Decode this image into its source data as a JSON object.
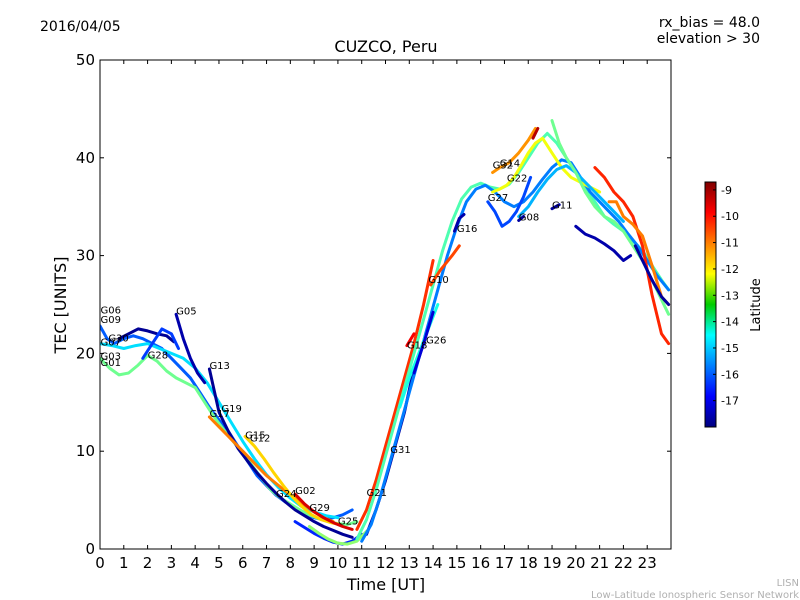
{
  "header": {
    "date": "2016/04/05",
    "bias": "rx_bias = 48.0",
    "elevation": "elevation > 30"
  },
  "footer": {
    "line1": "LISN",
    "line2": "Low-Latitude Ionospheric Sensor Network"
  },
  "chart_data": {
    "type": "line",
    "title": "CUZCO, Peru",
    "xlabel": "Time [UT]",
    "ylabel": "TEC [UNITS]",
    "xlim": [
      0,
      24
    ],
    "ylim": [
      0,
      50
    ],
    "xticks": [
      "0",
      "1",
      "2",
      "3",
      "4",
      "5",
      "6",
      "7",
      "8",
      "9",
      "10",
      "11",
      "12",
      "13",
      "14",
      "15",
      "16",
      "17",
      "18",
      "19",
      "20",
      "21",
      "22",
      "23"
    ],
    "yticks": [
      "0",
      "10",
      "20",
      "30",
      "40",
      "50"
    ],
    "grid": false,
    "colorbar": {
      "label": "Latitude",
      "range": [
        -18,
        -8.7
      ],
      "ticks": [
        "-9",
        "-10",
        "-11",
        "-12",
        "-13",
        "-14",
        "-15",
        "-16",
        "-17"
      ]
    },
    "satellite_labels": [
      {
        "name": "G06",
        "x": 0.02,
        "y": 24.1
      },
      {
        "name": "G09",
        "x": 0.02,
        "y": 23.1
      },
      {
        "name": "G30",
        "x": 0.35,
        "y": 21.2
      },
      {
        "name": "G07",
        "x": 0.02,
        "y": 20.8
      },
      {
        "name": "G03",
        "x": 0.02,
        "y": 19.4
      },
      {
        "name": "G01",
        "x": 0.02,
        "y": 18.7
      },
      {
        "name": "G28",
        "x": 2.0,
        "y": 19.5
      },
      {
        "name": "G05",
        "x": 3.2,
        "y": 24.0
      },
      {
        "name": "G13",
        "x": 4.6,
        "y": 18.4
      },
      {
        "name": "G19",
        "x": 5.1,
        "y": 14.0
      },
      {
        "name": "G17",
        "x": 4.6,
        "y": 13.5
      },
      {
        "name": "G15",
        "x": 6.1,
        "y": 11.3
      },
      {
        "name": "G12",
        "x": 6.3,
        "y": 11.0
      },
      {
        "name": "G24",
        "x": 7.4,
        "y": 5.3
      },
      {
        "name": "G02",
        "x": 8.2,
        "y": 5.6
      },
      {
        "name": "G29",
        "x": 8.8,
        "y": 3.9
      },
      {
        "name": "G25",
        "x": 10.0,
        "y": 2.5
      },
      {
        "name": "G21",
        "x": 11.2,
        "y": 5.4
      },
      {
        "name": "G31",
        "x": 12.2,
        "y": 9.8
      },
      {
        "name": "G18",
        "x": 12.9,
        "y": 20.5
      },
      {
        "name": "G26",
        "x": 13.7,
        "y": 21.0
      },
      {
        "name": "G10",
        "x": 13.8,
        "y": 27.2
      },
      {
        "name": "G16",
        "x": 15.0,
        "y": 32.4
      },
      {
        "name": "G27",
        "x": 16.3,
        "y": 35.6
      },
      {
        "name": "G32",
        "x": 16.5,
        "y": 38.9
      },
      {
        "name": "G14",
        "x": 16.8,
        "y": 39.1
      },
      {
        "name": "G22",
        "x": 17.1,
        "y": 37.6
      },
      {
        "name": "G08",
        "x": 17.6,
        "y": 33.6
      },
      {
        "name": "G11",
        "x": 19.0,
        "y": 34.8
      }
    ],
    "series": [
      {
        "lat": -16.0,
        "x": [
          0,
          0.3,
          0.6,
          1,
          1.4,
          1.8,
          2.2,
          2.6,
          3,
          3.4,
          3.8,
          4.2,
          4.6,
          5,
          5.4,
          5.8,
          6.2,
          6.6,
          7,
          7.4,
          7.8,
          8.2,
          8.6,
          9,
          9.4,
          9.8,
          10.2,
          10.6
        ],
        "y": [
          22.8,
          21.5,
          21,
          21.5,
          21.8,
          21.5,
          21,
          20.5,
          19.5,
          18.5,
          17.5,
          16,
          14.5,
          13.2,
          12,
          10.5,
          9,
          7.5,
          6.5,
          5.5,
          4.8,
          4.2,
          3.6,
          3.2,
          3,
          3.2,
          3.5,
          4.0
        ]
      },
      {
        "lat": -13.5,
        "x": [
          0,
          0.4,
          0.8,
          1.2,
          1.6,
          2,
          2.4,
          2.8,
          3.2,
          3.6,
          4,
          4.4,
          4.8,
          5.2,
          5.6,
          6,
          6.4,
          6.8,
          7.2,
          7.6,
          8,
          8.4,
          8.8,
          9.2,
          9.6,
          10,
          10.4,
          10.8
        ],
        "y": [
          19.5,
          18.5,
          17.8,
          18,
          18.8,
          19.8,
          19.2,
          18.2,
          17.5,
          17,
          16.5,
          15,
          13.5,
          12.2,
          11,
          9.8,
          8.5,
          7.2,
          6,
          5.2,
          4.6,
          4,
          3.5,
          3.1,
          2.8,
          2.6,
          2.5,
          2.8
        ]
      },
      {
        "lat": -14.8,
        "x": [
          0,
          0.5,
          1,
          1.5,
          2,
          2.5,
          3,
          3.5,
          4,
          4.5,
          5,
          5.5,
          6,
          6.5,
          7,
          7.5,
          8,
          8.5,
          9,
          9.5,
          10
        ],
        "y": [
          21,
          20.8,
          20.5,
          20.8,
          21,
          20.5,
          20,
          19.5,
          18.5,
          17,
          15,
          13,
          11,
          9.2,
          7.6,
          6.3,
          5.2,
          4.3,
          3.8,
          3.4,
          3.2
        ]
      },
      {
        "lat": -17.8,
        "x": [
          0.8,
          1.2,
          1.6,
          2,
          2.4,
          2.8,
          3.1
        ],
        "y": [
          21.5,
          22,
          22.5,
          22.3,
          22,
          21.8,
          21.2
        ]
      },
      {
        "lat": -17.6,
        "x": [
          3.2,
          3.5,
          3.8,
          4.1,
          4.4
        ],
        "y": [
          24,
          21.5,
          19.5,
          18,
          17
        ]
      },
      {
        "lat": -16.3,
        "x": [
          1.8,
          2.2,
          2.6,
          3,
          3.3
        ],
        "y": [
          19.5,
          21,
          22.5,
          22,
          20.5
        ]
      },
      {
        "lat": -17.8,
        "x": [
          4.6,
          5,
          5.4,
          5.8,
          6.2,
          6.6,
          7,
          7.4,
          7.8,
          8.2,
          8.6,
          9,
          9.4,
          9.8,
          10.2,
          10.6
        ],
        "y": [
          18.4,
          14,
          12,
          10.3,
          9,
          7.8,
          6.7,
          5.7,
          4.8,
          4,
          3.4,
          2.8,
          2.3,
          1.9,
          1.5,
          1.2
        ]
      },
      {
        "lat": -11.0,
        "x": [
          4.6,
          5,
          5.4,
          5.8,
          6.2,
          6.6,
          7,
          7.4,
          7.8,
          8.2,
          8.6,
          9,
          9.4,
          9.8
        ],
        "y": [
          13.5,
          12.5,
          11.5,
          10.5,
          9.5,
          8.5,
          7.5,
          6.7,
          5.9,
          5.2,
          4.5,
          3.8,
          3.2,
          2.8
        ]
      },
      {
        "lat": -11.8,
        "x": [
          6.1,
          6.5,
          6.9,
          7.3,
          7.7,
          8.1,
          8.5,
          8.9,
          9.3,
          9.7,
          10.1
        ],
        "y": [
          11.5,
          10.5,
          9.2,
          7.8,
          6.5,
          5.3,
          4.3,
          3.5,
          3,
          2.7,
          2.5
        ]
      },
      {
        "lat": -9.5,
        "x": [
          8.2,
          8.6,
          9,
          9.4,
          9.8,
          10.2,
          10.6
        ],
        "y": [
          5.6,
          4.6,
          3.8,
          3.2,
          2.7,
          2.3,
          2.0
        ]
      },
      {
        "lat": -16.5,
        "x": [
          8.2,
          8.6,
          9,
          9.4,
          9.8,
          10.2,
          10.6,
          11
        ],
        "y": [
          2.8,
          2.2,
          1.6,
          1.1,
          0.7,
          0.5,
          0.8,
          1.5
        ]
      },
      {
        "lat": -13.2,
        "x": [
          8.8,
          9.2,
          9.6,
          10,
          10.4,
          10.8,
          11.2
        ],
        "y": [
          2.3,
          1.6,
          1,
          0.6,
          0.5,
          0.8,
          1.8
        ]
      },
      {
        "lat": -10.3,
        "x": [
          10.8,
          11.2,
          11.6,
          12,
          12.4,
          12.8,
          13.2,
          13.6,
          14
        ],
        "y": [
          2,
          4,
          7,
          10.5,
          14,
          17.5,
          21,
          25,
          29.5
        ]
      },
      {
        "lat": -17.7,
        "x": [
          11.2,
          11.6,
          12,
          12.4,
          12.8,
          13.2
        ],
        "y": [
          1.5,
          4,
          7,
          10.5,
          14,
          18.5
        ]
      },
      {
        "lat": -13.8,
        "x": [
          10.8,
          11.2,
          11.6,
          12,
          12.4,
          12.8,
          13.2,
          13.6,
          14,
          14.4,
          14.8,
          15.2,
          15.6,
          16,
          16.4,
          16.8,
          17.2,
          17.6,
          18,
          18.4,
          18.8,
          19.2,
          19.6,
          20,
          20.4,
          20.8,
          21.2,
          21.6,
          22,
          22.4,
          22.8,
          23.2,
          23.6,
          23.9
        ],
        "y": [
          1,
          3,
          6,
          9.5,
          13,
          16.5,
          20,
          23.5,
          27,
          30.5,
          33.5,
          35.8,
          37,
          37.4,
          37,
          36.8,
          37.3,
          38.5,
          40,
          41.5,
          42.5,
          41.5,
          40,
          38.5,
          37,
          35.5,
          34,
          33.2,
          32.5,
          31.5,
          30.5,
          29,
          27.5,
          26.5
        ]
      },
      {
        "lat": -15.7,
        "x": [
          11,
          11.4,
          11.8,
          12.2,
          12.6,
          13,
          13.4,
          13.8,
          14.2,
          14.6,
          15,
          15.4,
          15.8,
          16.2,
          16.6,
          17,
          17.4,
          17.8,
          18.2,
          18.6,
          19,
          19.4,
          19.8,
          20.2,
          20.6,
          21,
          21.4,
          21.8,
          22.2,
          22.6,
          23,
          23.4,
          23.9
        ],
        "y": [
          0.8,
          2.5,
          5.5,
          9,
          12.5,
          16,
          19.5,
          23,
          26.5,
          30,
          33,
          35.5,
          36.8,
          37.2,
          36.5,
          35.5,
          35,
          35.5,
          36.5,
          37.8,
          39,
          39.8,
          39.5,
          38,
          36.5,
          35.5,
          34.5,
          33.5,
          32.2,
          31,
          29.5,
          28,
          26.5
        ]
      },
      {
        "lat": -14.3,
        "x": [
          12.6,
          13,
          13.4,
          13.8,
          14.2
        ],
        "y": [
          14.5,
          17.5,
          20,
          22.5,
          25
        ]
      },
      {
        "lat": -17.2,
        "x": [
          13.2,
          13.6,
          14
        ],
        "y": [
          18,
          21,
          24.2
        ]
      },
      {
        "lat": -9.8,
        "x": [
          12.9,
          13.2
        ],
        "y": [
          20.8,
          22
        ]
      },
      {
        "lat": -10.5,
        "x": [
          13.9,
          14.3,
          14.8,
          15.1
        ],
        "y": [
          27,
          28.5,
          30,
          31
        ]
      },
      {
        "lat": -17.6,
        "x": [
          14.9,
          15.1,
          15.3
        ],
        "y": [
          32.5,
          33.8,
          34.2
        ]
      },
      {
        "lat": -16.2,
        "x": [
          16.3,
          16.6,
          16.9,
          17.2,
          17.5,
          17.8,
          18.1
        ],
        "y": [
          35.5,
          34.5,
          33,
          33.5,
          34.5,
          36,
          38
        ]
      },
      {
        "lat": -12.3,
        "x": [
          16.5,
          16.8,
          17.1,
          17.4,
          17.7,
          18,
          18.3,
          18.6,
          19,
          19.4,
          19.8,
          20.2,
          20.6,
          21
        ],
        "y": [
          36.5,
          36.8,
          37.2,
          38,
          39.2,
          40.5,
          41.5,
          42,
          40.5,
          39,
          38,
          37.5,
          37,
          36.5
        ]
      },
      {
        "lat": -11.2,
        "x": [
          16.5,
          16.8,
          17.2,
          17.6,
          18,
          18.3
        ],
        "y": [
          38.5,
          39,
          39.5,
          40.5,
          41.8,
          43
        ]
      },
      {
        "lat": -15.2,
        "x": [
          17.6,
          18,
          18.4,
          18.8,
          19.2,
          19.6,
          20,
          20.4,
          20.8,
          21.2,
          21.6,
          22
        ],
        "y": [
          34,
          35,
          36.5,
          37.8,
          38.8,
          39.2,
          38.5,
          37.5,
          36.5,
          35.5,
          34.5,
          33.5
        ]
      },
      {
        "lat": -17.7,
        "x": [
          17.6,
          17.8
        ],
        "y": [
          33.6,
          34
        ]
      },
      {
        "lat": -9.2,
        "x": [
          18.2,
          18.4
        ],
        "y": [
          42,
          43
        ]
      },
      {
        "lat": -13.5,
        "x": [
          19,
          19.3,
          19.6,
          20,
          20.4,
          20.8,
          21.2,
          21.6,
          22,
          22.4,
          22.8,
          23.2,
          23.6,
          23.9
        ],
        "y": [
          43.8,
          41.5,
          40,
          38.5,
          36.5,
          35,
          34,
          33.5,
          32.5,
          31,
          29.5,
          27.5,
          25.5,
          24
        ]
      },
      {
        "lat": -17.7,
        "x": [
          19,
          19.3
        ],
        "y": [
          34.8,
          35.2
        ]
      },
      {
        "lat": -17.6,
        "x": [
          20,
          20.4,
          20.8,
          21.2,
          21.6,
          22,
          22.3
        ],
        "y": [
          33,
          32.2,
          31.8,
          31.2,
          30.5,
          29.5,
          30
        ]
      },
      {
        "lat": -10.2,
        "x": [
          20.8,
          21.2,
          21.6,
          22,
          22.4,
          22.8,
          23.2,
          23.6,
          23.9
        ],
        "y": [
          39,
          38,
          36.5,
          35.5,
          34,
          31,
          26,
          22,
          21
        ]
      },
      {
        "lat": -11.0,
        "x": [
          21.4,
          21.7,
          22,
          22.4,
          22.8,
          23.2,
          23.6,
          23.9
        ],
        "y": [
          35.5,
          35.5,
          34,
          33.2,
          32,
          29,
          25.8,
          25
        ]
      },
      {
        "lat": -17.7,
        "x": [
          22.5,
          22.8,
          23.2,
          23.6,
          23.9
        ],
        "y": [
          31,
          29.5,
          27.5,
          25.8,
          25
        ]
      }
    ]
  }
}
